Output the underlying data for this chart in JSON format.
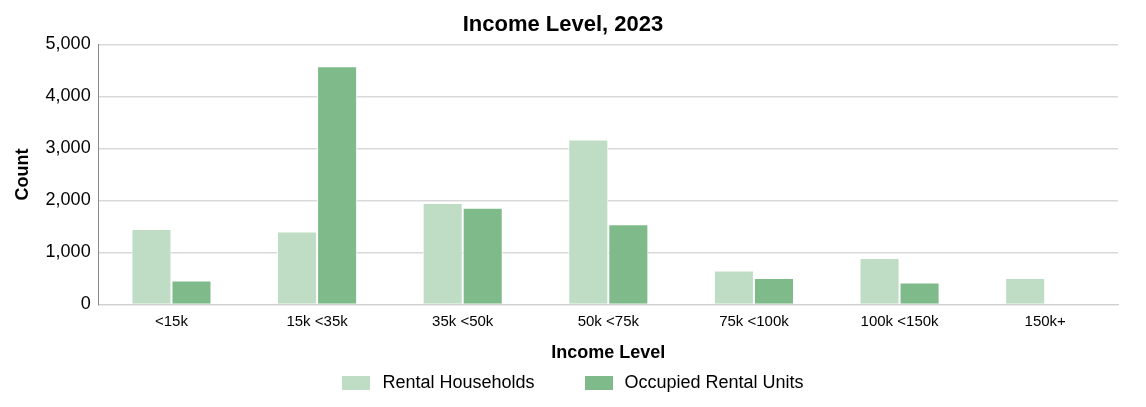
{
  "chart_data": {
    "type": "bar",
    "title": "Income Level, 2023",
    "xlabel": "Income Level",
    "ylabel": "Count",
    "categories": [
      "<15k",
      "15k <35k",
      "35k <50k",
      "50k <75k",
      "75k <100k",
      "100k <150k",
      "150k+"
    ],
    "series": [
      {
        "name": "Rental Households",
        "color": "#bfddc4",
        "values": [
          1450,
          1400,
          1950,
          3170,
          650,
          890,
          510
        ]
      },
      {
        "name": "Occupied Rental Units",
        "color": "#7fbb8a",
        "values": [
          460,
          4580,
          1860,
          1540,
          510,
          420,
          0
        ]
      }
    ],
    "ylim": [
      0,
      5000
    ],
    "yticks": [
      0,
      {
        "value": 1000,
        "label": "1,000"
      },
      {
        "value": 2000,
        "label": "2,000"
      },
      {
        "value": 3000,
        "label": "3,000"
      },
      {
        "value": 4000,
        "label": "4,000"
      },
      {
        "value": 5000,
        "label": "5,000"
      }
    ],
    "grid": "y",
    "legend": "bottom"
  }
}
